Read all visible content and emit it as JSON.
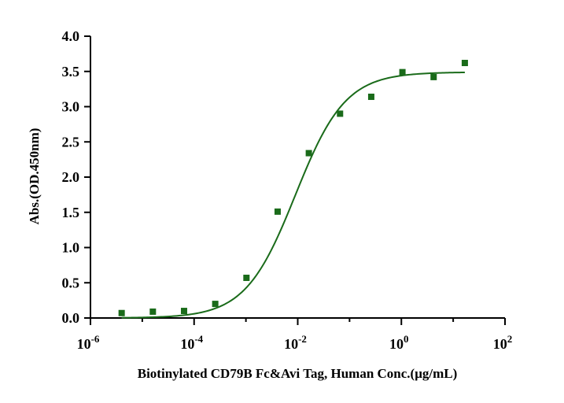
{
  "chart_data": {
    "type": "scatter",
    "title": "",
    "xlabel": "Biotinylated CD79B Fc&Avi Tag, Human Conc.(μg/mL)",
    "ylabel": "Abs.(OD.450nm)",
    "x_scale": "log10",
    "xlim": [
      1e-06,
      100
    ],
    "ylim": [
      0,
      4.0
    ],
    "x_ticks": [
      {
        "value": 1e-06,
        "base": "10",
        "exp": "-6"
      },
      {
        "value": 0.0001,
        "base": "10",
        "exp": "-4"
      },
      {
        "value": 0.01,
        "base": "10",
        "exp": "-2"
      },
      {
        "value": 1,
        "base": "10",
        "exp": "0"
      },
      {
        "value": 100,
        "base": "10",
        "exp": "2"
      }
    ],
    "y_ticks": [
      "0.0",
      "0.5",
      "1.0",
      "1.5",
      "2.0",
      "2.5",
      "3.0",
      "3.5",
      "4.0"
    ],
    "grid": false,
    "legend": "none",
    "series": [
      {
        "marker": "square",
        "color": "#1a6b1a",
        "x": [
          4e-06,
          1.6e-05,
          6.4e-05,
          0.000256,
          0.001024,
          0.004096,
          0.016384,
          0.065536,
          0.262144,
          1.048576,
          4.194304,
          16.777216
        ],
        "y": [
          0.07,
          0.09,
          0.1,
          0.2,
          0.57,
          1.51,
          2.34,
          2.9,
          3.14,
          3.49,
          3.42,
          3.62
        ]
      }
    ],
    "fit": {
      "model": "4PL",
      "color": "#1a6b1a",
      "bottom": 0.0,
      "top": 3.49,
      "ec50": 0.009,
      "hill": 0.9
    }
  }
}
